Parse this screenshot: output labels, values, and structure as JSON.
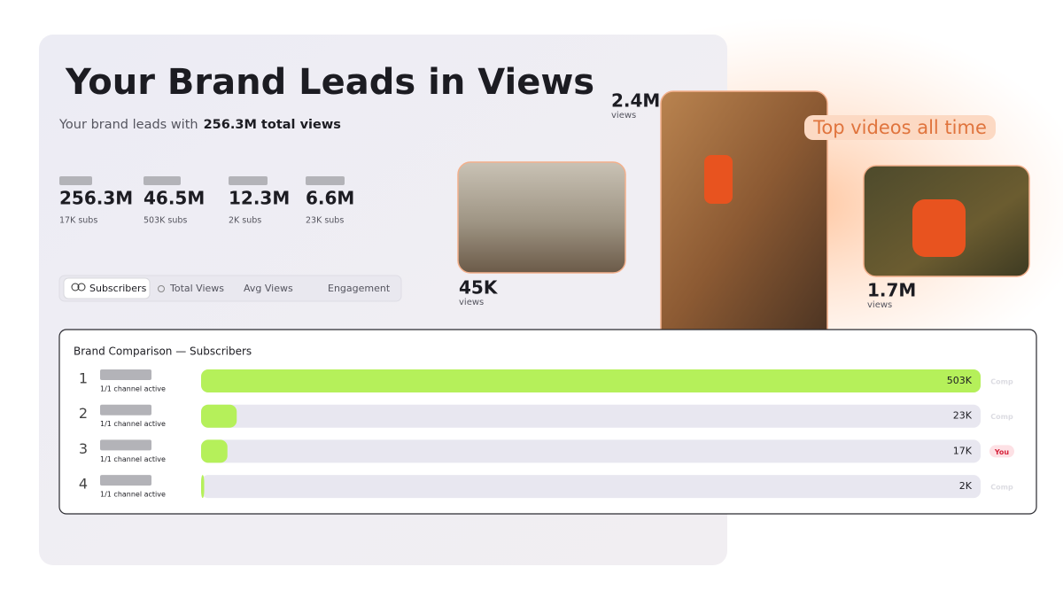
{
  "header": {
    "title": "Your Brand Leads in Views",
    "subtitle_prefix": "Your brand leads with",
    "subtitle_highlight": "256.3M total views"
  },
  "stats": [
    {
      "value": "256.3M",
      "subs": "17K subs"
    },
    {
      "value": "46.5M",
      "subs": "503K subs"
    },
    {
      "value": "12.3M",
      "subs": "2K subs"
    },
    {
      "value": "6.6M",
      "subs": "23K subs"
    }
  ],
  "tabs": [
    "Subscribers",
    "Total Views",
    "Avg Views",
    "Engagement"
  ],
  "videos": {
    "heading": "Top videos all time",
    "items": [
      {
        "views": "45K",
        "label": "views"
      },
      {
        "views": "2.4M",
        "label": "views"
      },
      {
        "views": "1.7M",
        "label": "views"
      }
    ]
  },
  "chart_data": {
    "type": "bar",
    "title": "Brand Comparison — Subscribers",
    "categories": [
      "1",
      "2",
      "3",
      "4"
    ],
    "subtitles": [
      "1/1 channel active",
      "1/1 channel active",
      "1/1 channel active",
      "1/1 channel active"
    ],
    "values": [
      503000,
      23000,
      17000,
      2000
    ],
    "value_labels": [
      "503K",
      "23K",
      "17K",
      "2K"
    ],
    "xlim": [
      0,
      503000
    ],
    "color": "#b5f05a",
    "badges": [
      {
        "text": "Comp",
        "color": "#dcdce2"
      },
      {
        "text": "Comp",
        "color": "#dcdce2"
      },
      {
        "text": "You",
        "color": "#d6243c",
        "background": "#fde1e5"
      },
      {
        "text": "Comp",
        "color": "#dcdce2"
      }
    ]
  }
}
